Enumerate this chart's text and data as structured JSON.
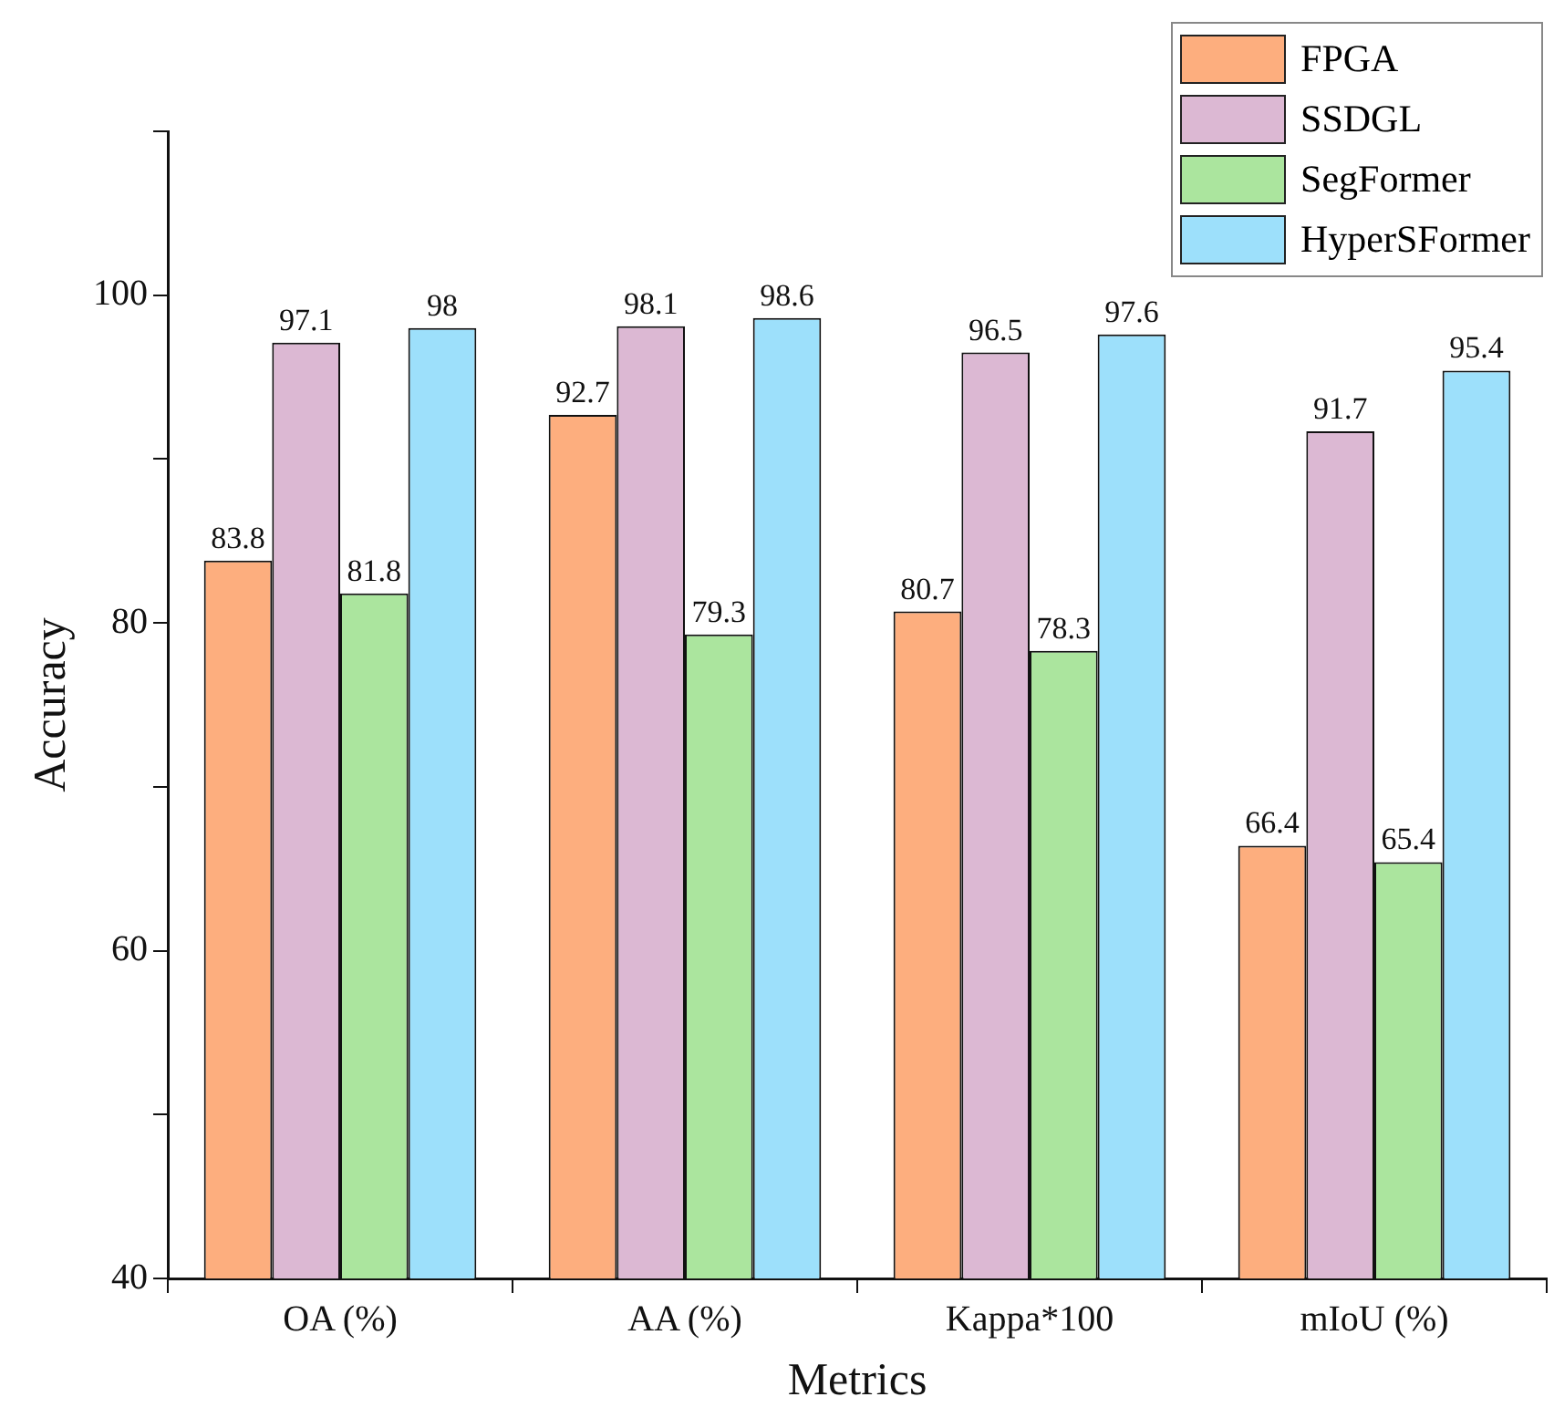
{
  "chart_data": {
    "type": "bar",
    "xlabel": "Metrics",
    "ylabel": "Accuracy",
    "categories": [
      "OA (%)",
      "AA (%)",
      "Kappa*100",
      "mIoU (%)"
    ],
    "series": [
      {
        "name": "FPGA",
        "color": "#fdae7e",
        "values": [
          83.8,
          92.7,
          80.7,
          66.4
        ]
      },
      {
        "name": "SSDGL",
        "color": "#dcb8d3",
        "values": [
          97.1,
          98.1,
          96.5,
          91.7
        ]
      },
      {
        "name": "SegFormer",
        "color": "#abe59e",
        "values": [
          81.8,
          79.3,
          78.3,
          65.4
        ]
      },
      {
        "name": "HyperSFormer",
        "color": "#9de0fb",
        "values": [
          98,
          98.6,
          97.6,
          95.4
        ]
      }
    ],
    "ylim": [
      40,
      110
    ],
    "yticks": [
      40,
      {
        "value": 50,
        "label": null
      },
      60,
      {
        "value": 70,
        "label": null
      },
      80,
      {
        "value": 90,
        "label": null
      },
      100,
      {
        "value": 110,
        "label": null
      }
    ],
    "data_labels": true,
    "grid": false,
    "legend": "top right"
  }
}
